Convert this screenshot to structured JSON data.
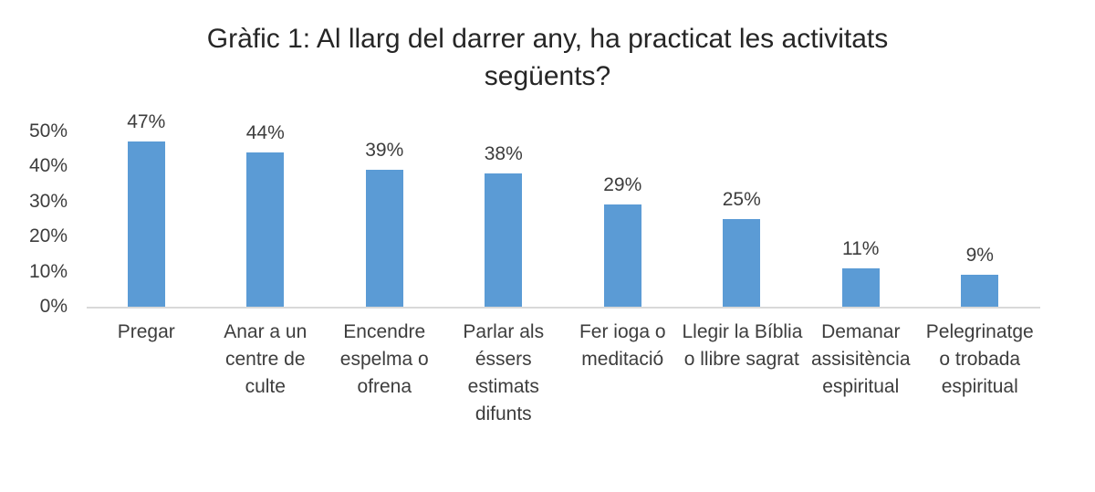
{
  "chart_data": {
    "type": "bar",
    "title": "Gràfic 1: Al llarg del darrer any, ha practicat les activitats següents?",
    "title_display": "Gràfic 1: Al llarg del darrer any, ha practicat les activitats\nsegüents?",
    "categories": [
      "Pregar",
      "Anar a un centre de culte",
      "Encendre espelma o ofrena",
      "Parlar als éssers estimats difunts",
      "Fer ioga o meditació",
      "Llegir la Bíblia o llibre sagrat",
      "Demanar assisitència espiritual",
      "Pelegrinatge o trobada espiritual"
    ],
    "category_display_lines": [
      [
        "Pregar"
      ],
      [
        "Anar a un",
        "centre de",
        "culte"
      ],
      [
        "Encendre",
        "espelma o",
        "ofrena"
      ],
      [
        "Parlar als",
        "éssers",
        "estimats",
        "difunts"
      ],
      [
        "Fer ioga o",
        "meditació"
      ],
      [
        "Llegir la Bíblia",
        "o llibre sagrat"
      ],
      [
        "Demanar",
        "assisitència",
        "espiritual"
      ],
      [
        "Pelegrinatge",
        "o trobada",
        "espiritual"
      ]
    ],
    "values": [
      47,
      44,
      39,
      38,
      29,
      25,
      11,
      9
    ],
    "value_labels": [
      "47%",
      "44%",
      "39%",
      "38%",
      "29%",
      "25%",
      "11%",
      "9%"
    ],
    "xlabel": "",
    "ylabel": "",
    "y_axis": {
      "min": 0,
      "max": 50,
      "ticks": [
        0,
        10,
        20,
        30,
        40,
        50
      ],
      "tick_labels": [
        "0%",
        "10%",
        "20%",
        "30%",
        "40%",
        "50%"
      ]
    },
    "grid": false,
    "legend": false,
    "colors": {
      "bar": "#5B9BD5",
      "axis_line": "#d9d9d9",
      "labels": "#3d3d3d",
      "title": "#262626",
      "background": "#ffffff"
    }
  }
}
